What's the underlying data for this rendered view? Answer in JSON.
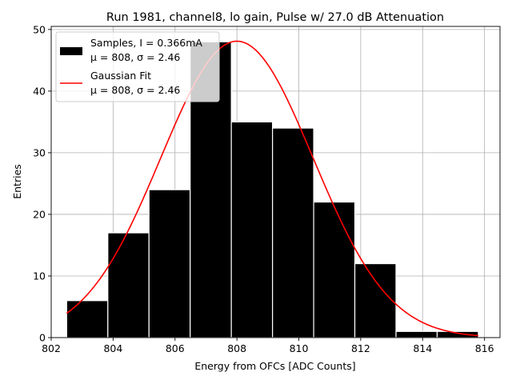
{
  "chart_data": {
    "type": "bar",
    "title": "Run 1981, channel8, lo gain, Pulse w/ 27.0 dB Attenuation",
    "xlabel": "Energy from OFCs [ADC Counts]",
    "ylabel": "Entries",
    "xlim": [
      802.0,
      816.5
    ],
    "ylim": [
      0,
      50.5
    ],
    "xticks": [
      802,
      804,
      806,
      808,
      810,
      812,
      814,
      816
    ],
    "yticks": [
      0,
      10,
      20,
      30,
      40,
      50
    ],
    "grid": true,
    "legend_position": "top-left",
    "histogram": {
      "name": "Samples, I = 0.366mA",
      "stats": "μ = 808, σ = 2.46",
      "bin_edges": [
        802.5,
        803.83,
        805.16,
        806.49,
        807.82,
        809.15,
        810.48,
        811.81,
        813.14,
        814.47,
        815.8
      ],
      "counts": [
        6,
        17,
        24,
        48,
        35,
        34,
        22,
        12,
        1,
        1
      ],
      "color": "#000000",
      "edgecolor": "#ffffff"
    },
    "fit": {
      "name": "Gaussian Fit",
      "stats": "μ = 808, σ = 2.46",
      "mu": 808.0,
      "sigma": 2.46,
      "amplitude": 48.1,
      "x_range": [
        802.5,
        815.8
      ],
      "color": "#ff0000"
    }
  }
}
